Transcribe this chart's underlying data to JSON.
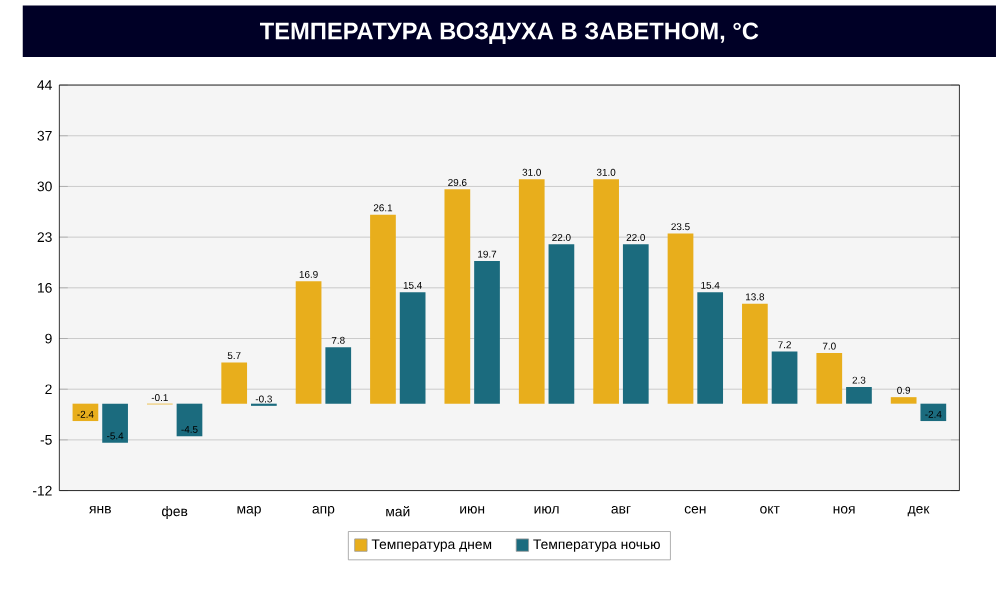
{
  "chart_data": {
    "type": "bar",
    "title": "ТЕМПЕРАТУРА ВОЗДУХА В ЗАВЕТНОМ, °С",
    "categories": [
      "янв",
      "фев",
      "мар",
      "апр",
      "май",
      "июн",
      "июл",
      "авг",
      "сен",
      "окт",
      "ноя",
      "дек"
    ],
    "series": [
      {
        "name": "Температура днем",
        "color": "#e8ae1c",
        "values": [
          -2.4,
          -0.1,
          5.7,
          16.9,
          26.1,
          29.6,
          31.0,
          31.0,
          23.5,
          13.8,
          7.0,
          0.9
        ],
        "value_labels": [
          "-2.4",
          "-0.1",
          "5.7",
          "16.9",
          "26.1",
          "29.6",
          "31.0",
          "31.0",
          "23.5",
          "13.8",
          "7.0",
          "0.9"
        ]
      },
      {
        "name": "Температура ночью",
        "color": "#1b6b7e",
        "values": [
          -5.4,
          -4.5,
          -0.3,
          7.8,
          15.4,
          19.7,
          22.0,
          22.0,
          15.4,
          7.2,
          2.3,
          -2.4
        ],
        "value_labels": [
          "-5.4",
          "-4.5",
          "-0.3",
          "7.8",
          "15.4",
          "19.7",
          "22.0",
          "22.0",
          "15.4",
          "7.2",
          "2.3",
          "-2.4"
        ]
      }
    ],
    "ylim": [
      -12,
      44
    ],
    "yticks": [
      -12,
      -5,
      2,
      9,
      16,
      23,
      30,
      37,
      44
    ],
    "grid": "y",
    "legend": "bottom"
  }
}
